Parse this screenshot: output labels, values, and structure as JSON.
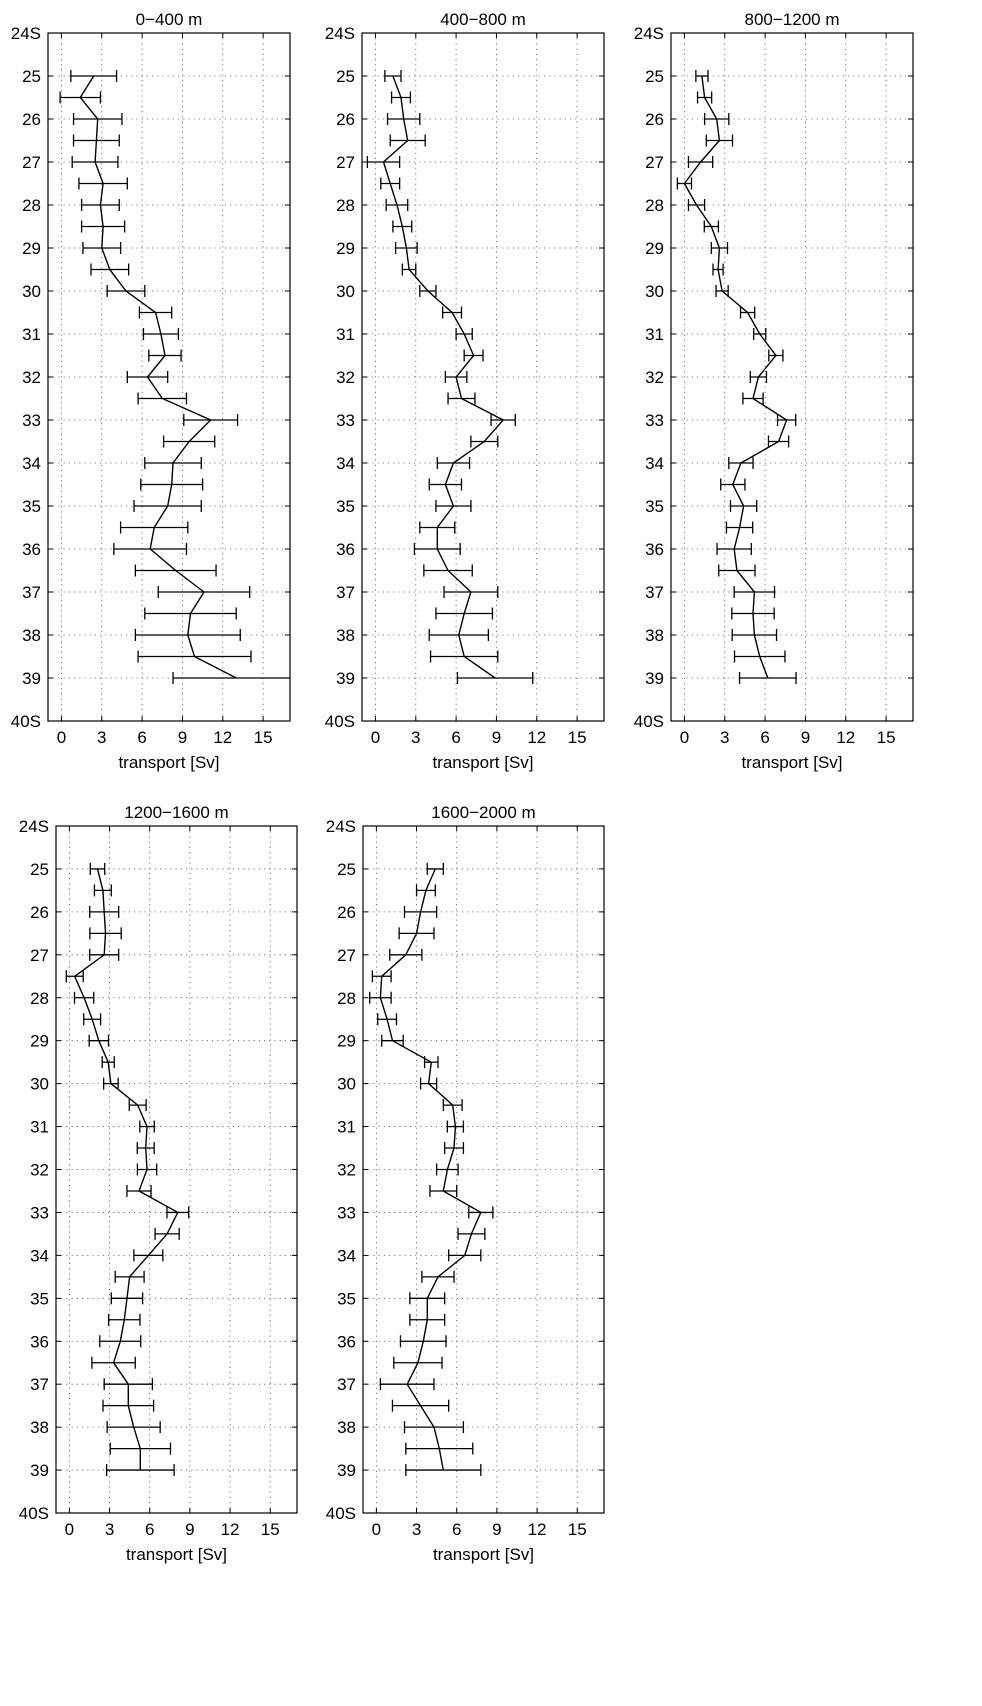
{
  "chart_data": [
    {
      "type": "line",
      "title": "0−400 m",
      "xlabel": "transport [Sv]",
      "ylabel": "",
      "xlim": [
        -1,
        17
      ],
      "ylim": [
        24,
        40
      ],
      "xticks": [
        0,
        3,
        6,
        9,
        12,
        15
      ],
      "xtick_labels": [
        "0",
        "3",
        "6",
        "9",
        "12",
        "15"
      ],
      "yticks": [
        24,
        25,
        26,
        27,
        28,
        29,
        30,
        31,
        32,
        33,
        34,
        35,
        36,
        37,
        38,
        39,
        40
      ],
      "ytick_labels": [
        "24S",
        "25",
        "26",
        "27",
        "28",
        "29",
        "30",
        "31",
        "32",
        "33",
        "34",
        "35",
        "36",
        "37",
        "38",
        "39",
        "40S"
      ],
      "grid": true,
      "y_reversed": true,
      "series": [
        {
          "y": [
            25,
            25.5,
            26,
            26.5,
            27,
            27.5,
            28,
            28.5,
            29,
            29.5,
            30,
            30.5,
            31,
            31.5,
            32,
            32.5,
            33,
            33.5,
            34,
            34.5,
            35,
            35.5,
            36,
            36.5,
            37,
            37.5,
            38,
            38.5,
            39
          ],
          "x": [
            2.4,
            1.4,
            2.7,
            2.6,
            2.5,
            3.1,
            2.9,
            3.1,
            3.0,
            3.6,
            4.8,
            7.0,
            7.4,
            7.7,
            6.4,
            7.5,
            11.1,
            9.5,
            8.3,
            8.2,
            7.9,
            6.9,
            6.6,
            8.5,
            10.6,
            9.6,
            9.4,
            9.9,
            13.0
          ],
          "err": [
            1.7,
            1.5,
            1.8,
            1.7,
            1.7,
            1.8,
            1.4,
            1.6,
            1.4,
            1.4,
            1.4,
            1.2,
            1.3,
            1.2,
            1.5,
            1.8,
            2.0,
            1.9,
            2.1,
            2.3,
            2.5,
            2.5,
            2.7,
            3.0,
            3.4,
            3.4,
            3.9,
            4.2,
            4.7
          ]
        }
      ]
    },
    {
      "type": "line",
      "title": "400−800 m",
      "xlabel": "transport [Sv]",
      "ylabel": "",
      "xlim": [
        -1,
        17
      ],
      "ylim": [
        24,
        40
      ],
      "xticks": [
        0,
        3,
        6,
        9,
        12,
        15
      ],
      "xtick_labels": [
        "0",
        "3",
        "6",
        "9",
        "12",
        "15"
      ],
      "yticks": [
        24,
        25,
        26,
        27,
        28,
        29,
        30,
        31,
        32,
        33,
        34,
        35,
        36,
        37,
        38,
        39,
        40
      ],
      "ytick_labels": [
        "24S",
        "25",
        "26",
        "27",
        "28",
        "29",
        "30",
        "31",
        "32",
        "33",
        "34",
        "35",
        "36",
        "37",
        "38",
        "39",
        "40S"
      ],
      "grid": true,
      "y_reversed": true,
      "series": [
        {
          "y": [
            25,
            25.5,
            26,
            26.5,
            27,
            27.5,
            28,
            28.5,
            29,
            29.5,
            30,
            30.5,
            31,
            31.5,
            32,
            32.5,
            33,
            33.5,
            34,
            34.5,
            35,
            35.5,
            36,
            36.5,
            37,
            37.5,
            38,
            38.5,
            39
          ],
          "x": [
            1.3,
            1.9,
            2.1,
            2.4,
            0.6,
            1.1,
            1.6,
            2.0,
            2.3,
            2.5,
            3.9,
            5.7,
            6.6,
            7.3,
            6.0,
            6.4,
            9.5,
            8.1,
            5.8,
            5.2,
            5.8,
            4.6,
            4.6,
            5.4,
            7.1,
            6.6,
            6.2,
            6.6,
            8.9
          ]
        }
      ]
    },
    {
      "type": "line",
      "title": "800−1200 m",
      "xlabel": "transport [Sv]",
      "ylabel": "",
      "xlim": [
        -1,
        17
      ],
      "ylim": [
        24,
        40
      ],
      "xticks": [
        0,
        3,
        6,
        9,
        12,
        15
      ],
      "xtick_labels": [
        "0",
        "3",
        "6",
        "9",
        "12",
        "15"
      ],
      "yticks": [
        24,
        25,
        26,
        27,
        28,
        29,
        30,
        31,
        32,
        33,
        34,
        35,
        36,
        37,
        38,
        39,
        40
      ],
      "ytick_labels": [
        "24S",
        "25",
        "26",
        "27",
        "28",
        "29",
        "30",
        "31",
        "32",
        "33",
        "34",
        "35",
        "36",
        "37",
        "38",
        "39",
        "40S"
      ],
      "grid": true,
      "y_reversed": true,
      "series": [
        {
          "y": [
            25,
            25.5,
            26,
            26.5,
            27,
            27.5,
            28,
            28.5,
            29,
            29.5,
            30,
            30.5,
            31,
            31.5,
            32,
            32.5,
            33,
            33.5,
            34,
            34.5,
            35,
            35.5,
            36,
            36.5,
            37,
            37.5,
            38,
            38.5,
            39
          ],
          "x": [
            1.3,
            1.5,
            2.4,
            2.6,
            1.2,
            0.0,
            0.9,
            2.0,
            2.6,
            2.5,
            2.8,
            4.7,
            5.6,
            6.8,
            5.5,
            5.1,
            7.6,
            7.0,
            4.2,
            3.6,
            4.4,
            4.1,
            3.7,
            3.9,
            5.2,
            5.1,
            5.2,
            5.6,
            6.2
          ]
        }
      ]
    },
    {
      "type": "line",
      "title": "1200−1600 m",
      "xlabel": "transport [Sv]",
      "ylabel": "",
      "xlim": [
        -1,
        17
      ],
      "ylim": [
        24,
        40
      ],
      "xticks": [
        0,
        3,
        6,
        9,
        12,
        15
      ],
      "xtick_labels": [
        "0",
        "3",
        "6",
        "9",
        "12",
        "15"
      ],
      "yticks": [
        24,
        25,
        26,
        27,
        28,
        29,
        30,
        31,
        32,
        33,
        34,
        35,
        36,
        37,
        38,
        39,
        40
      ],
      "ytick_labels": [
        "24S",
        "25",
        "26",
        "27",
        "28",
        "29",
        "30",
        "31",
        "32",
        "33",
        "34",
        "35",
        "36",
        "37",
        "38",
        "39",
        "40S"
      ],
      "grid": true,
      "y_reversed": true,
      "series": [
        {
          "y": [
            25,
            25.5,
            26,
            26.5,
            27,
            27.5,
            28,
            28.5,
            29,
            29.5,
            30,
            30.5,
            31,
            31.5,
            32,
            32.5,
            33,
            33.5,
            34,
            34.5,
            35,
            35.5,
            36,
            36.5,
            37,
            37.5,
            38,
            38.5,
            39
          ],
          "x": [
            2.1,
            2.5,
            2.6,
            2.7,
            2.6,
            0.4,
            1.1,
            1.7,
            2.2,
            2.9,
            3.1,
            5.1,
            5.8,
            5.7,
            5.8,
            5.2,
            8.1,
            7.3,
            5.9,
            4.5,
            4.3,
            4.1,
            3.8,
            3.3,
            4.4,
            4.4,
            4.8,
            5.3,
            5.3
          ]
        }
      ]
    },
    {
      "type": "line",
      "title": "1600−2000 m",
      "xlabel": "transport [Sv]",
      "ylabel": "",
      "xlim": [
        -1,
        17
      ],
      "ylim": [
        24,
        40
      ],
      "xticks": [
        0,
        3,
        6,
        9,
        12,
        15
      ],
      "xtick_labels": [
        "0",
        "3",
        "6",
        "9",
        "12",
        "15"
      ],
      "yticks": [
        24,
        25,
        26,
        27,
        28,
        29,
        30,
        31,
        32,
        33,
        34,
        35,
        36,
        37,
        38,
        39,
        40
      ],
      "ytick_labels": [
        "24S",
        "25",
        "26",
        "27",
        "28",
        "29",
        "30",
        "31",
        "32",
        "33",
        "34",
        "35",
        "36",
        "37",
        "38",
        "39",
        "40S"
      ],
      "grid": true,
      "y_reversed": true,
      "series": [
        {
          "y": [
            25,
            25.5,
            26,
            26.5,
            27,
            27.5,
            28,
            28.5,
            29,
            29.5,
            30,
            30.5,
            31,
            31.5,
            32,
            32.5,
            33,
            33.5,
            34,
            34.5,
            35,
            35.5,
            36,
            36.5,
            37,
            37.5,
            38,
            38.5,
            39
          ],
          "x": [
            4.4,
            3.7,
            3.3,
            3.0,
            2.2,
            0.4,
            0.3,
            0.8,
            1.2,
            4.1,
            3.9,
            5.7,
            5.9,
            5.8,
            5.3,
            5.0,
            7.8,
            7.1,
            6.6,
            4.6,
            3.8,
            3.8,
            3.5,
            3.1,
            2.3,
            3.3,
            4.3,
            4.7,
            5.0
          ]
        }
      ]
    }
  ]
}
